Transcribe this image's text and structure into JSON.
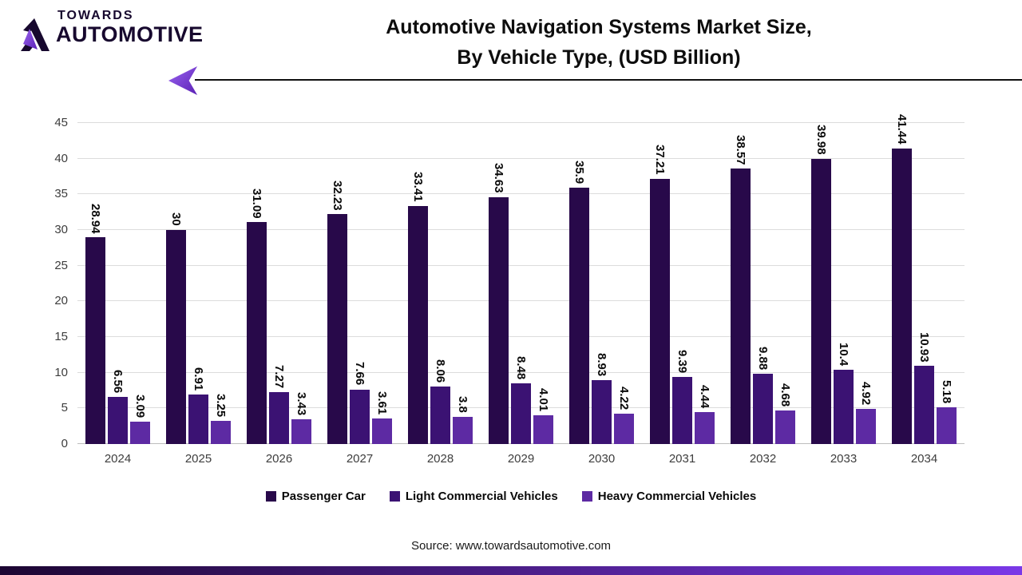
{
  "logo": {
    "line1": "TOWARDS",
    "line2": "AUTOMOTIVE"
  },
  "title": {
    "line1": "Automotive Navigation Systems Market Size,",
    "line2": "By Vehicle Type, (USD Billion)"
  },
  "source": "Source: www.towardsautomotive.com",
  "colors": {
    "series_passenger_car": "#28094A",
    "series_light_commercial": "#3B1273",
    "series_heavy_commercial": "#5D2AA3",
    "gridline": "#dcdcdc",
    "baseline": "#bdbdbd",
    "header_line": "#101010",
    "purple_gradient_light": "#9A63F0",
    "purple_gradient_dark": "#5B21B5",
    "footer_gradient_left": "#1C0632",
    "footer_gradient_mid": "#4A1D86",
    "footer_gradient_right": "#7A38E8"
  },
  "chart_data": {
    "type": "bar",
    "title": "Automotive Navigation Systems Market Size, By Vehicle Type, (USD Billion)",
    "categories": [
      "2024",
      "2025",
      "2026",
      "2027",
      "2028",
      "2029",
      "2030",
      "2031",
      "2032",
      "2033",
      "2034"
    ],
    "series": [
      {
        "name": "Passenger Car",
        "color": "#28094A",
        "values": [
          28.94,
          30,
          31.09,
          32.23,
          33.41,
          34.63,
          35.9,
          37.21,
          38.57,
          39.98,
          41.44
        ]
      },
      {
        "name": "Light Commercial Vehicles",
        "color": "#3B1273",
        "values": [
          6.56,
          6.91,
          7.27,
          7.66,
          8.06,
          8.48,
          8.93,
          9.39,
          9.88,
          10.4,
          10.93
        ]
      },
      {
        "name": "Heavy Commercial Vehicles",
        "color": "#5D2AA3",
        "values": [
          3.09,
          3.25,
          3.43,
          3.61,
          3.8,
          4.01,
          4.22,
          4.44,
          4.68,
          4.92,
          5.18
        ]
      }
    ],
    "xlabel": "",
    "ylabel": "",
    "ylim": [
      0,
      45
    ],
    "ytick_step": 5,
    "grid": true,
    "value_labels": "rotated-90",
    "legend_position": "bottom"
  }
}
